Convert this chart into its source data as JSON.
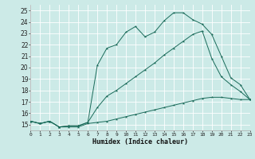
{
  "xlabel": "Humidex (Indice chaleur)",
  "background_color": "#cceae7",
  "line_color": "#1a6b5a",
  "grid_color": "#ffffff",
  "xlim": [
    0,
    23
  ],
  "ylim": [
    14.5,
    25.5
  ],
  "xticks": [
    0,
    1,
    2,
    3,
    4,
    5,
    6,
    7,
    8,
    9,
    10,
    11,
    12,
    13,
    14,
    15,
    16,
    17,
    18,
    19,
    20,
    21,
    22,
    23
  ],
  "yticks": [
    15,
    16,
    17,
    18,
    19,
    20,
    21,
    22,
    23,
    24,
    25
  ],
  "line1_x": [
    0,
    1,
    2,
    3,
    4,
    5,
    6,
    7,
    8,
    9,
    10,
    11,
    12,
    13,
    14,
    15,
    16,
    17,
    18,
    19,
    20,
    21,
    22,
    23
  ],
  "line1_y": [
    15.3,
    15.1,
    15.3,
    14.8,
    14.8,
    14.8,
    15.1,
    15.2,
    15.3,
    15.5,
    15.7,
    15.9,
    16.1,
    16.3,
    16.5,
    16.7,
    16.9,
    17.1,
    17.3,
    17.4,
    17.4,
    17.3,
    17.2,
    17.2
  ],
  "line2_x": [
    0,
    1,
    2,
    3,
    4,
    5,
    6,
    7,
    8,
    9,
    10,
    11,
    12,
    13,
    14,
    15,
    16,
    17,
    18,
    19,
    20,
    21,
    22,
    23
  ],
  "line2_y": [
    15.3,
    15.1,
    15.3,
    14.8,
    14.9,
    14.9,
    15.2,
    16.5,
    17.5,
    18.0,
    18.6,
    19.2,
    19.8,
    20.4,
    21.1,
    21.7,
    22.3,
    22.9,
    23.2,
    20.8,
    19.2,
    18.5,
    17.9,
    17.2
  ],
  "line3_x": [
    0,
    1,
    2,
    3,
    4,
    5,
    6,
    7,
    8,
    9,
    10,
    11,
    12,
    13,
    14,
    15,
    16,
    17,
    18,
    19,
    20,
    21,
    22,
    23
  ],
  "line3_y": [
    15.3,
    15.1,
    15.3,
    14.8,
    14.9,
    14.9,
    15.2,
    20.2,
    21.7,
    22.0,
    23.1,
    23.6,
    22.7,
    23.1,
    24.1,
    24.8,
    24.8,
    24.2,
    23.8,
    22.9,
    21.0,
    19.1,
    18.5,
    17.2
  ]
}
